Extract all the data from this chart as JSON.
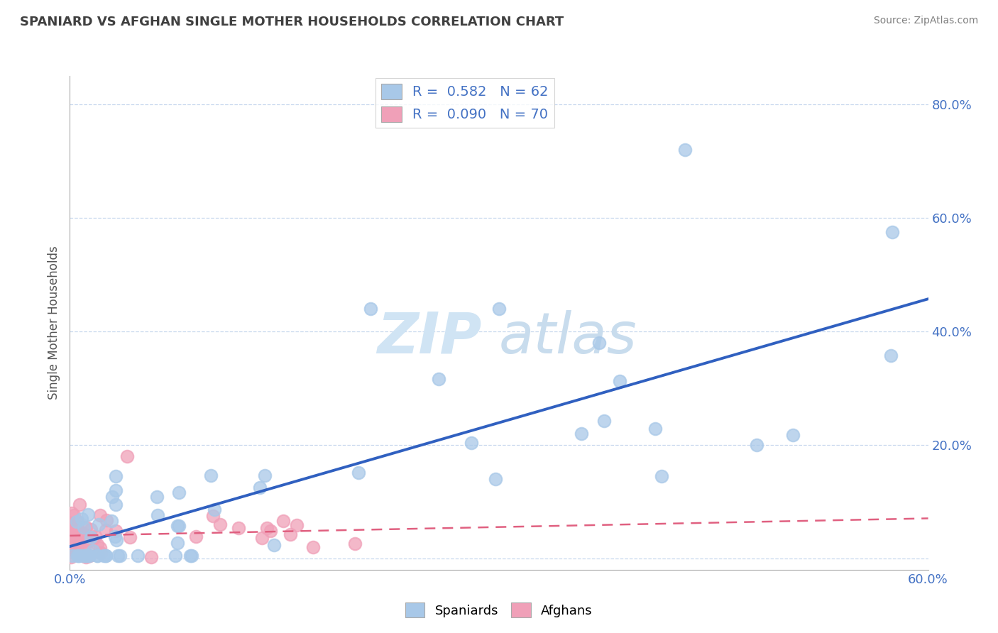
{
  "title": "SPANIARD VS AFGHAN SINGLE MOTHER HOUSEHOLDS CORRELATION CHART",
  "source": "Source: ZipAtlas.com",
  "ylabel": "Single Mother Households",
  "xlim": [
    0.0,
    0.6
  ],
  "ylim": [
    -0.02,
    0.85
  ],
  "xticks": [
    0.0,
    0.1,
    0.2,
    0.3,
    0.4,
    0.5,
    0.6
  ],
  "xticklabels": [
    "0.0%",
    "",
    "",
    "",
    "",
    "",
    "60.0%"
  ],
  "yticks": [
    0.0,
    0.2,
    0.4,
    0.6,
    0.8
  ],
  "yticklabels": [
    "",
    "20.0%",
    "40.0%",
    "60.0%",
    "80.0%"
  ],
  "spaniard_color": "#a8c8e8",
  "afghan_color": "#f0a0b8",
  "trend_spaniard_color": "#3060c0",
  "trend_afghan_color": "#e06080",
  "title_color": "#404040",
  "source_color": "#808080",
  "tick_color": "#4472c4",
  "grid_color": "#c8d8ee",
  "watermark_zip_color": "#d0e4f4",
  "watermark_atlas_color": "#c8dced"
}
